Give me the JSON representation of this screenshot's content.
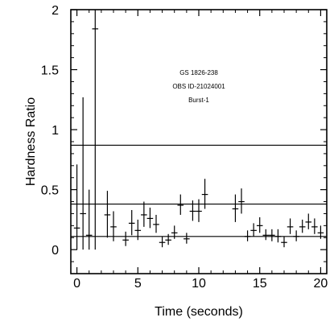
{
  "chart_data": {
    "type": "scatter",
    "xlabel": "Time (seconds)",
    "ylabel": "Hardness Ratio",
    "xlim": [
      -0.5,
      20.5
    ],
    "ylim": [
      -0.2,
      2.0
    ],
    "x_ticks": [
      0,
      5,
      10,
      15,
      20
    ],
    "x_tick_labels": [
      "0",
      "5",
      "10",
      "15",
      "20"
    ],
    "y_ticks": [
      0,
      0.5,
      1,
      1.5,
      2
    ],
    "y_tick_labels": [
      "0",
      "0.5",
      "1",
      "1.5",
      "2"
    ],
    "annotations": [
      "GS 1826-238",
      "OBS ID-21024001",
      "Burst-1"
    ],
    "horizontal_lines": [
      0.87,
      0.38,
      0.11
    ],
    "grid": false,
    "series": [
      {
        "points": [
          {
            "x": 0.0,
            "y": 0.18,
            "xerr": 0.25,
            "yerr_low": 0.18,
            "yerr_high": 0.53
          },
          {
            "x": 0.5,
            "y": 0.3,
            "xerr": 0.25,
            "yerr_low": 0.3,
            "yerr_high": 0.97
          },
          {
            "x": 1.0,
            "y": 0.12,
            "xerr": 0.25,
            "yerr_low": 0.12,
            "yerr_high": 0.38
          },
          {
            "x": 1.5,
            "y": 1.84,
            "xerr": 0.25,
            "yerr_low": 1.84,
            "yerr_high": 0.16
          },
          {
            "x": 2.5,
            "y": 0.29,
            "xerr": 0.25,
            "yerr_low": 0.19,
            "yerr_high": 0.2
          },
          {
            "x": 3.0,
            "y": 0.19,
            "xerr": 0.25,
            "yerr_low": 0.12,
            "yerr_high": 0.13
          },
          {
            "x": 4.0,
            "y": 0.08,
            "xerr": 0.25,
            "yerr_low": 0.05,
            "yerr_high": 0.07
          },
          {
            "x": 4.5,
            "y": 0.22,
            "xerr": 0.25,
            "yerr_low": 0.1,
            "yerr_high": 0.11
          },
          {
            "x": 5.0,
            "y": 0.16,
            "xerr": 0.25,
            "yerr_low": 0.08,
            "yerr_high": 0.09
          },
          {
            "x": 5.5,
            "y": 0.29,
            "xerr": 0.25,
            "yerr_low": 0.1,
            "yerr_high": 0.11
          },
          {
            "x": 6.0,
            "y": 0.26,
            "xerr": 0.25,
            "yerr_low": 0.08,
            "yerr_high": 0.09
          },
          {
            "x": 6.5,
            "y": 0.21,
            "xerr": 0.25,
            "yerr_low": 0.07,
            "yerr_high": 0.08
          },
          {
            "x": 7.0,
            "y": 0.06,
            "xerr": 0.25,
            "yerr_low": 0.04,
            "yerr_high": 0.05
          },
          {
            "x": 7.5,
            "y": 0.08,
            "xerr": 0.25,
            "yerr_low": 0.04,
            "yerr_high": 0.05
          },
          {
            "x": 8.0,
            "y": 0.14,
            "xerr": 0.25,
            "yerr_low": 0.05,
            "yerr_high": 0.06
          },
          {
            "x": 8.5,
            "y": 0.37,
            "xerr": 0.25,
            "yerr_low": 0.08,
            "yerr_high": 0.09
          },
          {
            "x": 9.0,
            "y": 0.09,
            "xerr": 0.25,
            "yerr_low": 0.04,
            "yerr_high": 0.05
          },
          {
            "x": 9.5,
            "y": 0.32,
            "xerr": 0.25,
            "yerr_low": 0.08,
            "yerr_high": 0.09
          },
          {
            "x": 10.0,
            "y": 0.32,
            "xerr": 0.25,
            "yerr_low": 0.09,
            "yerr_high": 0.1
          },
          {
            "x": 10.5,
            "y": 0.46,
            "xerr": 0.25,
            "yerr_low": 0.12,
            "yerr_high": 0.13
          },
          {
            "x": 13.0,
            "y": 0.34,
            "xerr": 0.25,
            "yerr_low": 0.11,
            "yerr_high": 0.12
          },
          {
            "x": 13.5,
            "y": 0.4,
            "xerr": 0.25,
            "yerr_low": 0.1,
            "yerr_high": 0.11
          },
          {
            "x": 14.0,
            "y": 0.11,
            "xerr": 0.25,
            "yerr_low": 0.04,
            "yerr_high": 0.05
          },
          {
            "x": 14.5,
            "y": 0.16,
            "xerr": 0.25,
            "yerr_low": 0.05,
            "yerr_high": 0.06
          },
          {
            "x": 15.0,
            "y": 0.2,
            "xerr": 0.25,
            "yerr_low": 0.06,
            "yerr_high": 0.07
          },
          {
            "x": 15.5,
            "y": 0.12,
            "xerr": 0.25,
            "yerr_low": 0.04,
            "yerr_high": 0.05
          },
          {
            "x": 16.0,
            "y": 0.12,
            "xerr": 0.25,
            "yerr_low": 0.05,
            "yerr_high": 0.05
          },
          {
            "x": 16.5,
            "y": 0.11,
            "xerr": 0.25,
            "yerr_low": 0.05,
            "yerr_high": 0.06
          },
          {
            "x": 17.0,
            "y": 0.06,
            "xerr": 0.25,
            "yerr_low": 0.04,
            "yerr_high": 0.05
          },
          {
            "x": 17.5,
            "y": 0.19,
            "xerr": 0.25,
            "yerr_low": 0.06,
            "yerr_high": 0.07
          },
          {
            "x": 18.0,
            "y": 0.11,
            "xerr": 0.25,
            "yerr_low": 0.04,
            "yerr_high": 0.05
          },
          {
            "x": 18.5,
            "y": 0.19,
            "xerr": 0.25,
            "yerr_low": 0.05,
            "yerr_high": 0.06
          },
          {
            "x": 19.0,
            "y": 0.23,
            "xerr": 0.25,
            "yerr_low": 0.06,
            "yerr_high": 0.07
          },
          {
            "x": 19.5,
            "y": 0.19,
            "xerr": 0.25,
            "yerr_low": 0.06,
            "yerr_high": 0.07
          },
          {
            "x": 20.0,
            "y": 0.14,
            "xerr": 0.25,
            "yerr_low": 0.05,
            "yerr_high": 0.06
          }
        ]
      }
    ]
  }
}
